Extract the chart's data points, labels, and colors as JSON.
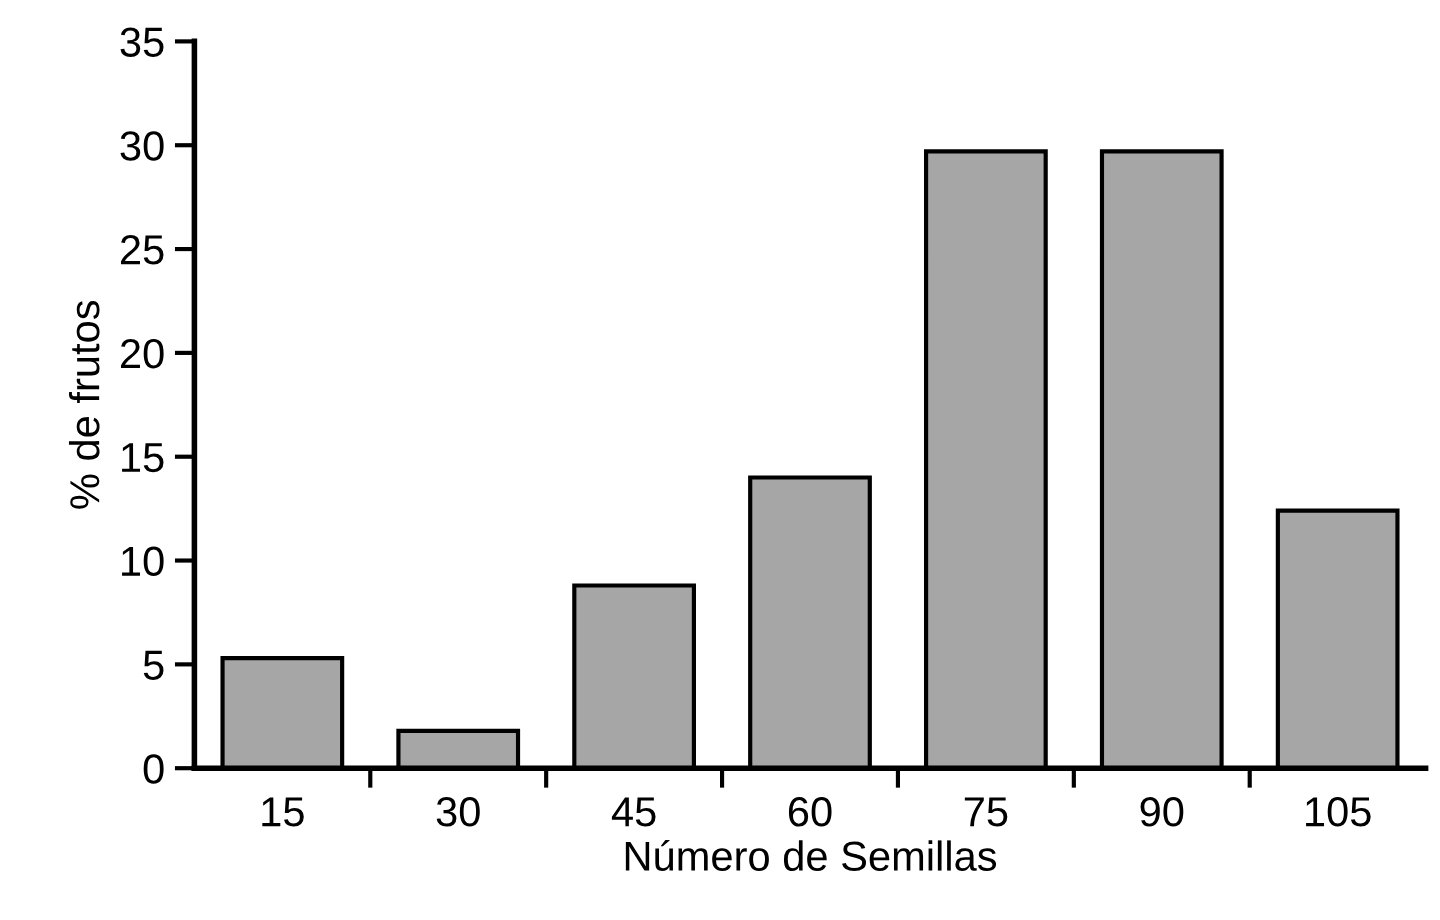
{
  "chart_data": {
    "type": "bar",
    "xlabel": "Número de Semillas",
    "ylabel": "% de frutos",
    "categories": [
      "15",
      "30",
      "45",
      "60",
      "75",
      "90",
      "105"
    ],
    "values": [
      5.3,
      1.8,
      8.8,
      14.0,
      29.7,
      29.7,
      12.4
    ],
    "color": "#a6a6a6",
    "ylim": [
      0,
      35
    ],
    "yticks": [
      0,
      5,
      10,
      15,
      20,
      25,
      30,
      35
    ],
    "grid": false
  }
}
